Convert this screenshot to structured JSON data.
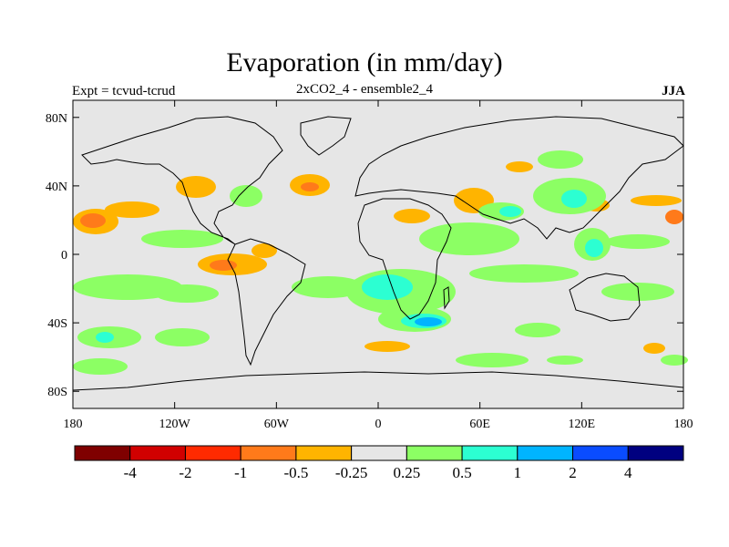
{
  "title": "Evaporation (in mm/day)",
  "left_label": "Expt = tcvud-tcrud",
  "center_label": "2xCO2_4 - ensemble2_4",
  "right_label": "JJA",
  "map": {
    "lat_ticks": [
      "80N",
      "40N",
      "0",
      "40S",
      "80S"
    ],
    "lon_ticks": [
      "180",
      "120W",
      "60W",
      "0",
      "60E",
      "120E",
      "180"
    ],
    "background_color": "#e6e6e6"
  },
  "colorbar": {
    "colors": [
      "#7f0000",
      "#d10000",
      "#ff2a00",
      "#ff7a1a",
      "#ffb400",
      "#e6e6e6",
      "#8cff64",
      "#2cffd2",
      "#00b4ff",
      "#0a4cff",
      "#000080"
    ],
    "labels": [
      "-4",
      "-2",
      "-1",
      "-0.5",
      "-0.25",
      "0.25",
      "0.5",
      "1",
      "2",
      "4"
    ]
  }
}
